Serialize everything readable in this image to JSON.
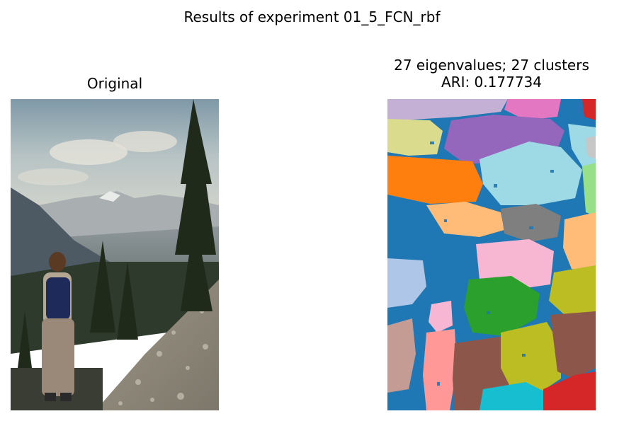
{
  "figure": {
    "suptitle": "Results of experiment 01_5_FCN_rbf"
  },
  "panels": {
    "left": {
      "title": "Original"
    },
    "right": {
      "title_line1": "27 eigenvalues; 27 clusters",
      "title_line2": "ARI: 0.177734"
    }
  },
  "chart_data": {
    "type": "image_pair",
    "title": "Results of experiment 01_5_FCN_rbf",
    "images": [
      {
        "title": "Original",
        "content": "photograph: hiker with backpack overlooking mountain valley, pine trees, rocky slope"
      },
      {
        "title": "27 eigenvalues; 27 clusters\nARI: 0.177734",
        "content": "segmentation map",
        "eigenvalues": 27,
        "clusters": 27,
        "ARI": 0.177734
      }
    ],
    "axes": "off",
    "colors": {
      "background_cluster": "#1f77b4",
      "palette": [
        "#1f77b4",
        "#ff7f0e",
        "#2ca02c",
        "#d62728",
        "#9467bd",
        "#8c564b",
        "#e377c2",
        "#7f7f7f",
        "#bcbd22",
        "#17becf",
        "#aec7e8",
        "#ffbb78",
        "#98df8a",
        "#ff9896",
        "#c5b0d5",
        "#c49c94",
        "#f7b6d2",
        "#c7c7c7",
        "#dbdb8d",
        "#9edae5"
      ]
    }
  }
}
